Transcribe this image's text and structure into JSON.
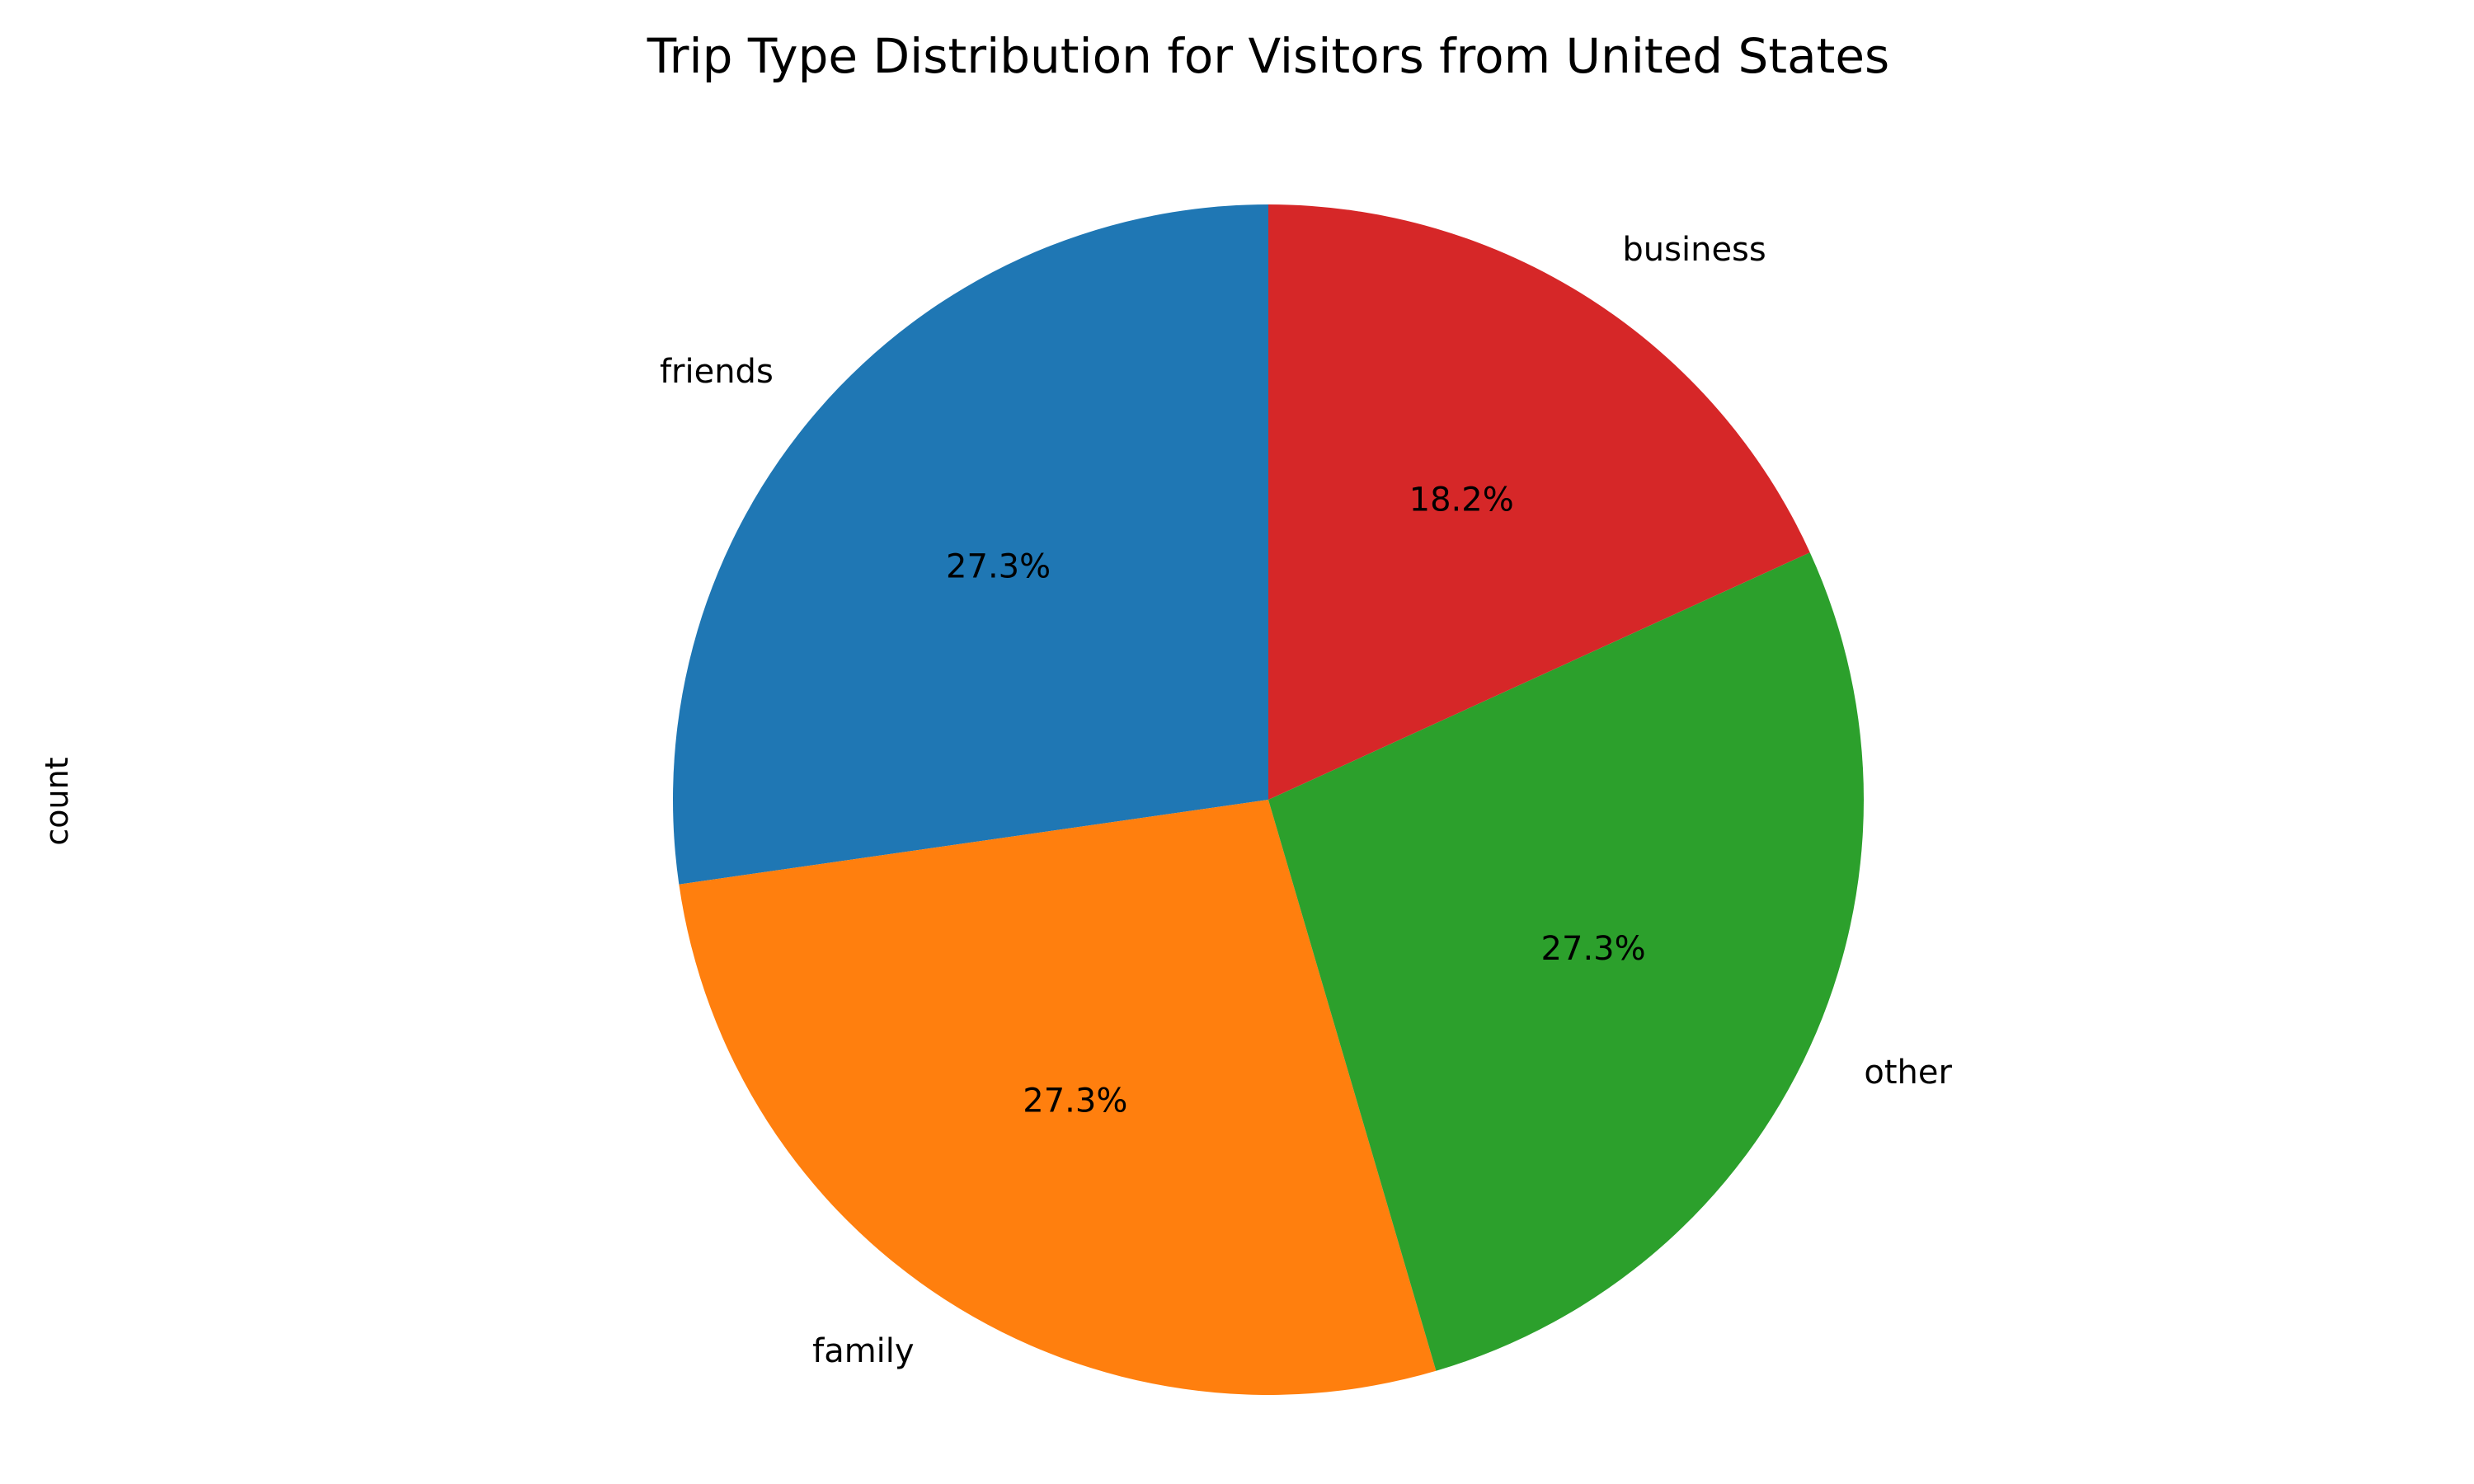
{
  "chart_data": {
    "type": "pie",
    "title": "Trip Type Distribution for Visitors from United States",
    "ylabel": "count",
    "start_angle_deg": 90,
    "direction": "counterclockwise",
    "slices": [
      {
        "label": "friends",
        "value": 3,
        "pct_label": "27.3%",
        "color": "#1f77b4"
      },
      {
        "label": "family",
        "value": 3,
        "pct_label": "27.3%",
        "color": "#ff7f0e"
      },
      {
        "label": "other",
        "value": 3,
        "pct_label": "27.3%",
        "color": "#2ca02c"
      },
      {
        "label": "business",
        "value": 2,
        "pct_label": "18.2%",
        "color": "#d62728"
      }
    ],
    "legend": "none",
    "grid": false
  }
}
